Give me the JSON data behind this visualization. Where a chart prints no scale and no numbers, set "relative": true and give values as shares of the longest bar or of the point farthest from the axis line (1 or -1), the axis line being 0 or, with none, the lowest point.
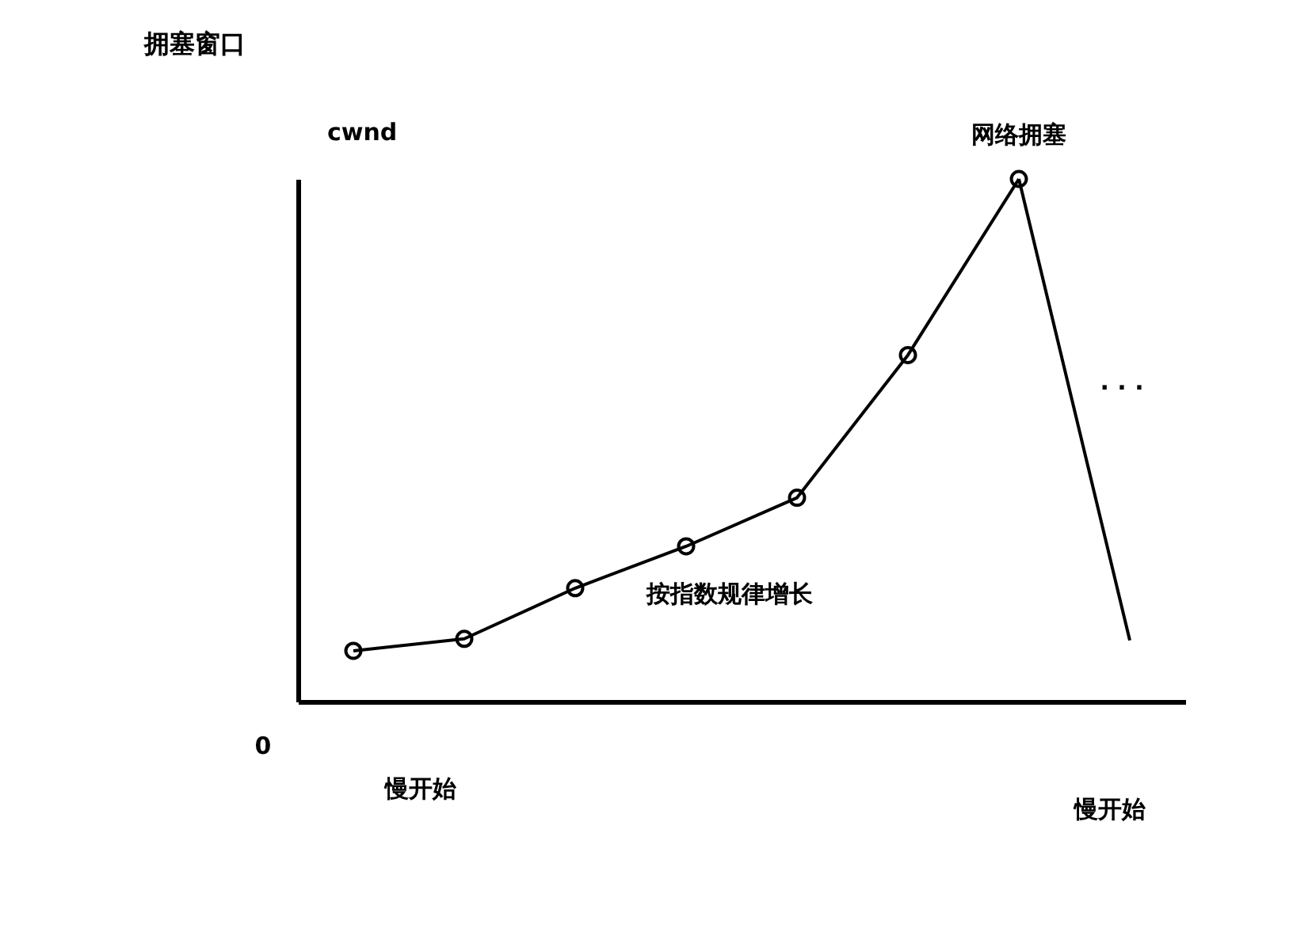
{
  "chart_data": {
    "type": "line",
    "title": "拥塞窗口",
    "ylabel": "cwnd",
    "relative": true,
    "categories": [
      null,
      null,
      null,
      null,
      null,
      null,
      null,
      null
    ],
    "series": [
      {
        "color": "#000000",
        "marker": "circle",
        "values": [
          0.097,
          0.12,
          0.217,
          0.297,
          0.39,
          0.663,
          1,
          null
        ]
      },
      {
        "color": "#000000",
        "marker": "none",
        "values": [
          null,
          null,
          null,
          null,
          null,
          null,
          1,
          0.117
        ]
      }
    ],
    "annotations": [
      "网络拥塞",
      "按指数规律增长",
      "0",
      "慢开始",
      "慢开始",
      ". . ."
    ],
    "data_labels": false
  }
}
